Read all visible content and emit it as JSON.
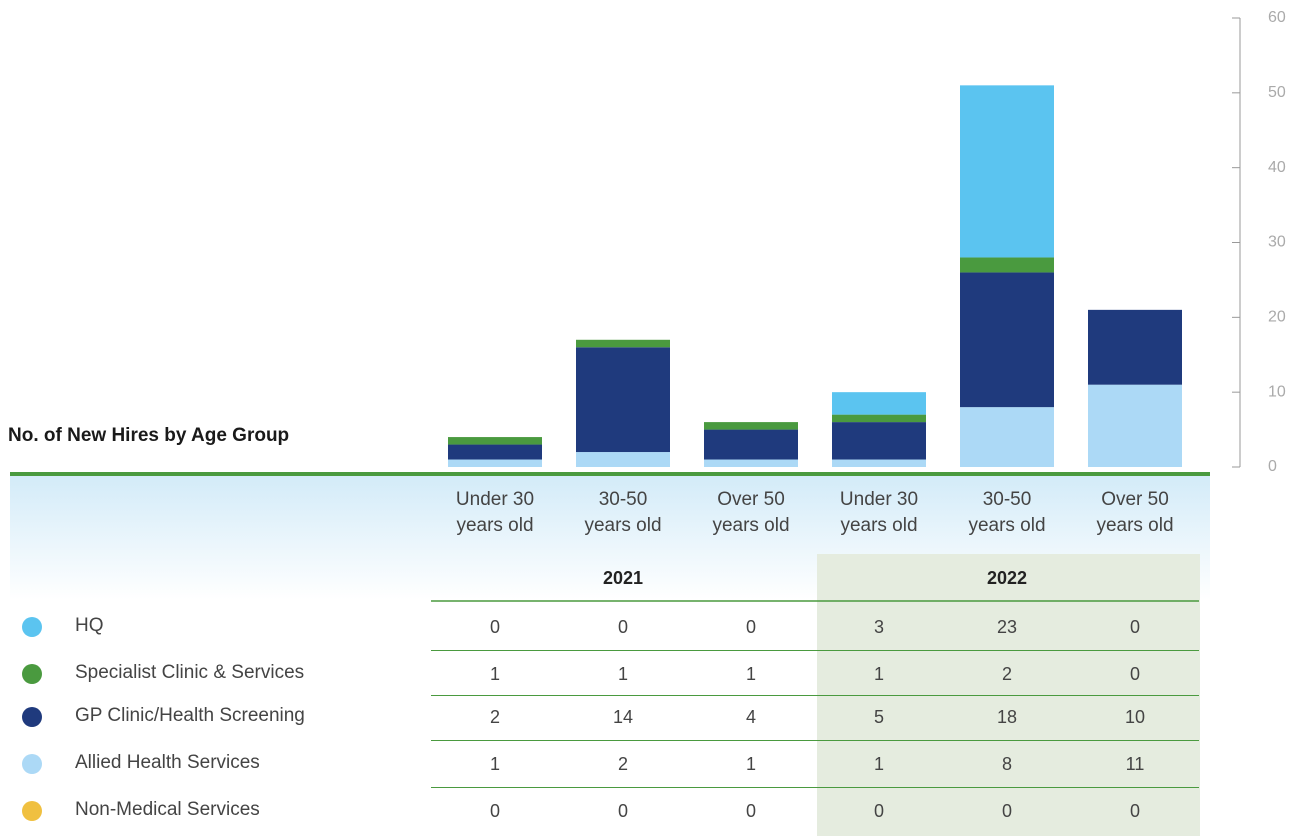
{
  "chart_data": {
    "type": "stacked_bar",
    "title": "No. of New Hires by Age Group",
    "categories": [
      "Under 30\nyears old",
      "30-50\nyears old",
      "Over 50\nyears old",
      "Under 30\nyears old",
      "30-50\nyears old",
      "Over 50\nyears old"
    ],
    "groups": [
      "2021",
      "2022"
    ],
    "series": [
      {
        "name": "HQ",
        "color": "#5bc4f0",
        "values": [
          0,
          0,
          0,
          3,
          23,
          0
        ]
      },
      {
        "name": "Specialist Clinic & Services",
        "color": "#4a9a3f",
        "values": [
          1,
          1,
          1,
          1,
          2,
          0
        ]
      },
      {
        "name": "GP Clinic/Health Screening",
        "color": "#1f3a7d",
        "values": [
          2,
          14,
          4,
          5,
          18,
          10
        ]
      },
      {
        "name": "Allied Health Services",
        "color": "#acd9f6",
        "values": [
          1,
          2,
          1,
          1,
          8,
          11
        ]
      },
      {
        "name": "Non-Medical Services",
        "color": "#f0c040",
        "values": [
          0,
          0,
          0,
          0,
          0,
          0
        ]
      }
    ],
    "ylim": [
      0,
      60
    ],
    "yticks": [
      0,
      10,
      20,
      30,
      40,
      50,
      60
    ]
  }
}
